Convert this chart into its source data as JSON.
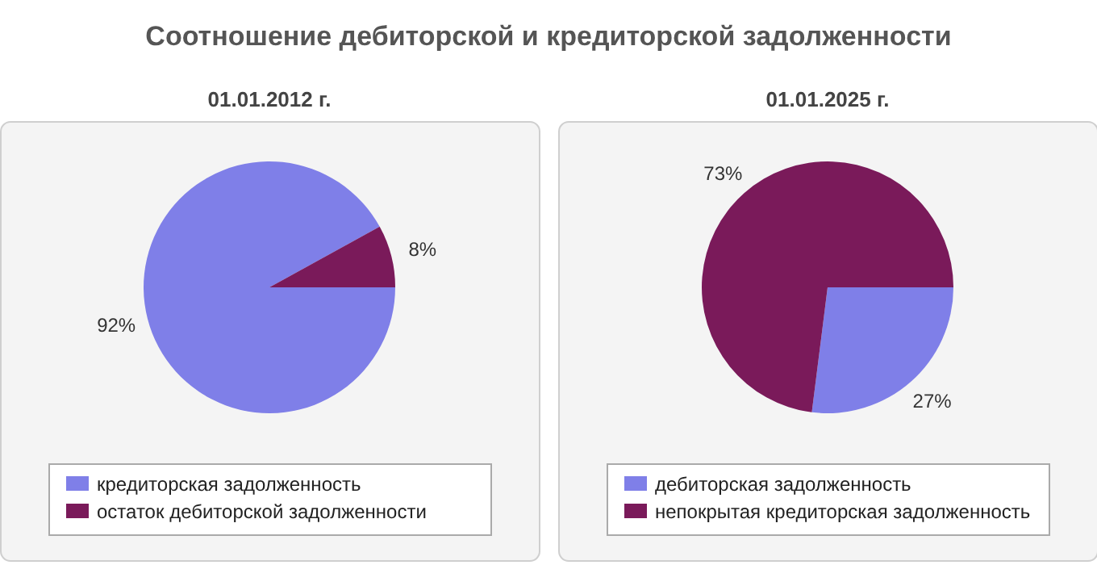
{
  "chart_data": [
    {
      "type": "pie",
      "title": "Соотношение дебиторской и кредиторской задолженности",
      "subtitle": "01.01.2012 г.",
      "categories": [
        "кредиторская задолженность",
        "остаток дебиторской задолженности"
      ],
      "values": [
        92,
        8
      ],
      "value_labels": [
        "92%",
        "8%"
      ],
      "colors": [
        "#7f7fe8",
        "#7a1a5a"
      ],
      "legend": "bottom"
    },
    {
      "type": "pie",
      "subtitle": "01.01.2025 г.",
      "categories": [
        "дебиторская задолженность",
        "непокрытая кредиторская задолженность"
      ],
      "values": [
        27,
        73
      ],
      "value_labels": [
        "27%",
        "73%"
      ],
      "colors": [
        "#7f7fe8",
        "#7a1a5a"
      ],
      "legend": "bottom"
    }
  ]
}
